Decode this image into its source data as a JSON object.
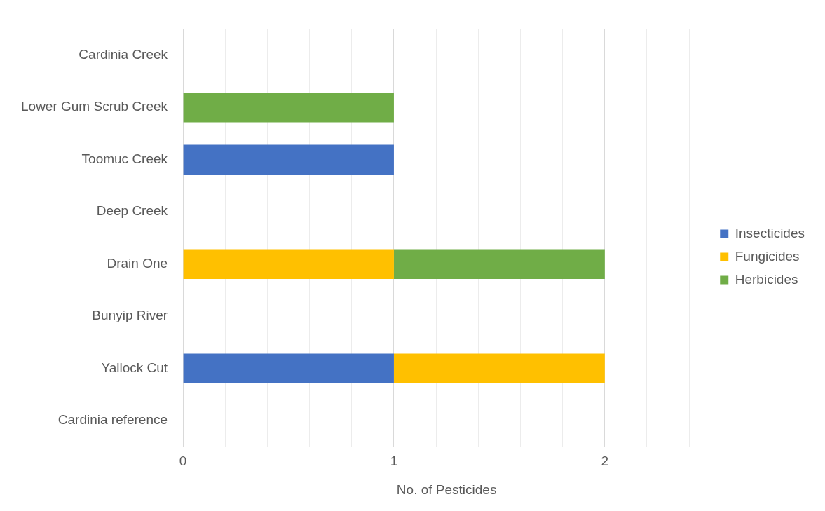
{
  "chart_data": {
    "type": "bar",
    "orientation": "horizontal",
    "stacked": true,
    "xlabel": "No. of Pesticides",
    "categories": [
      "Cardinia Creek",
      "Lower Gum Scrub Creek",
      "Toomuc Creek",
      "Deep Creek",
      "Drain One",
      "Bunyip River",
      "Yallock Cut",
      "Cardinia reference"
    ],
    "series": [
      {
        "name": "Insecticides",
        "color": "#4472c4",
        "values": [
          0,
          0,
          1,
          0,
          0,
          0,
          1,
          0
        ]
      },
      {
        "name": "Fungicides",
        "color": "#ffc000",
        "values": [
          0,
          0,
          0,
          0,
          1,
          0,
          1,
          0
        ]
      },
      {
        "name": "Herbicides",
        "color": "#70ad47",
        "values": [
          0,
          1,
          0,
          0,
          1,
          0,
          0,
          0
        ]
      }
    ],
    "xlim": [
      0,
      2.5
    ],
    "xticks": [
      0,
      {
        "value": 0.2,
        "label": null
      },
      {
        "value": 0.4,
        "label": null
      },
      {
        "value": 0.6,
        "label": null
      },
      {
        "value": 0.8,
        "label": null
      },
      1,
      {
        "value": 1.2,
        "label": null
      },
      {
        "value": 1.4,
        "label": null
      },
      {
        "value": 1.6,
        "label": null
      },
      {
        "value": 1.8,
        "label": null
      },
      2,
      {
        "value": 2.2,
        "label": null
      },
      {
        "value": 2.4,
        "label": null
      }
    ],
    "grid": "x",
    "legend": "right"
  }
}
